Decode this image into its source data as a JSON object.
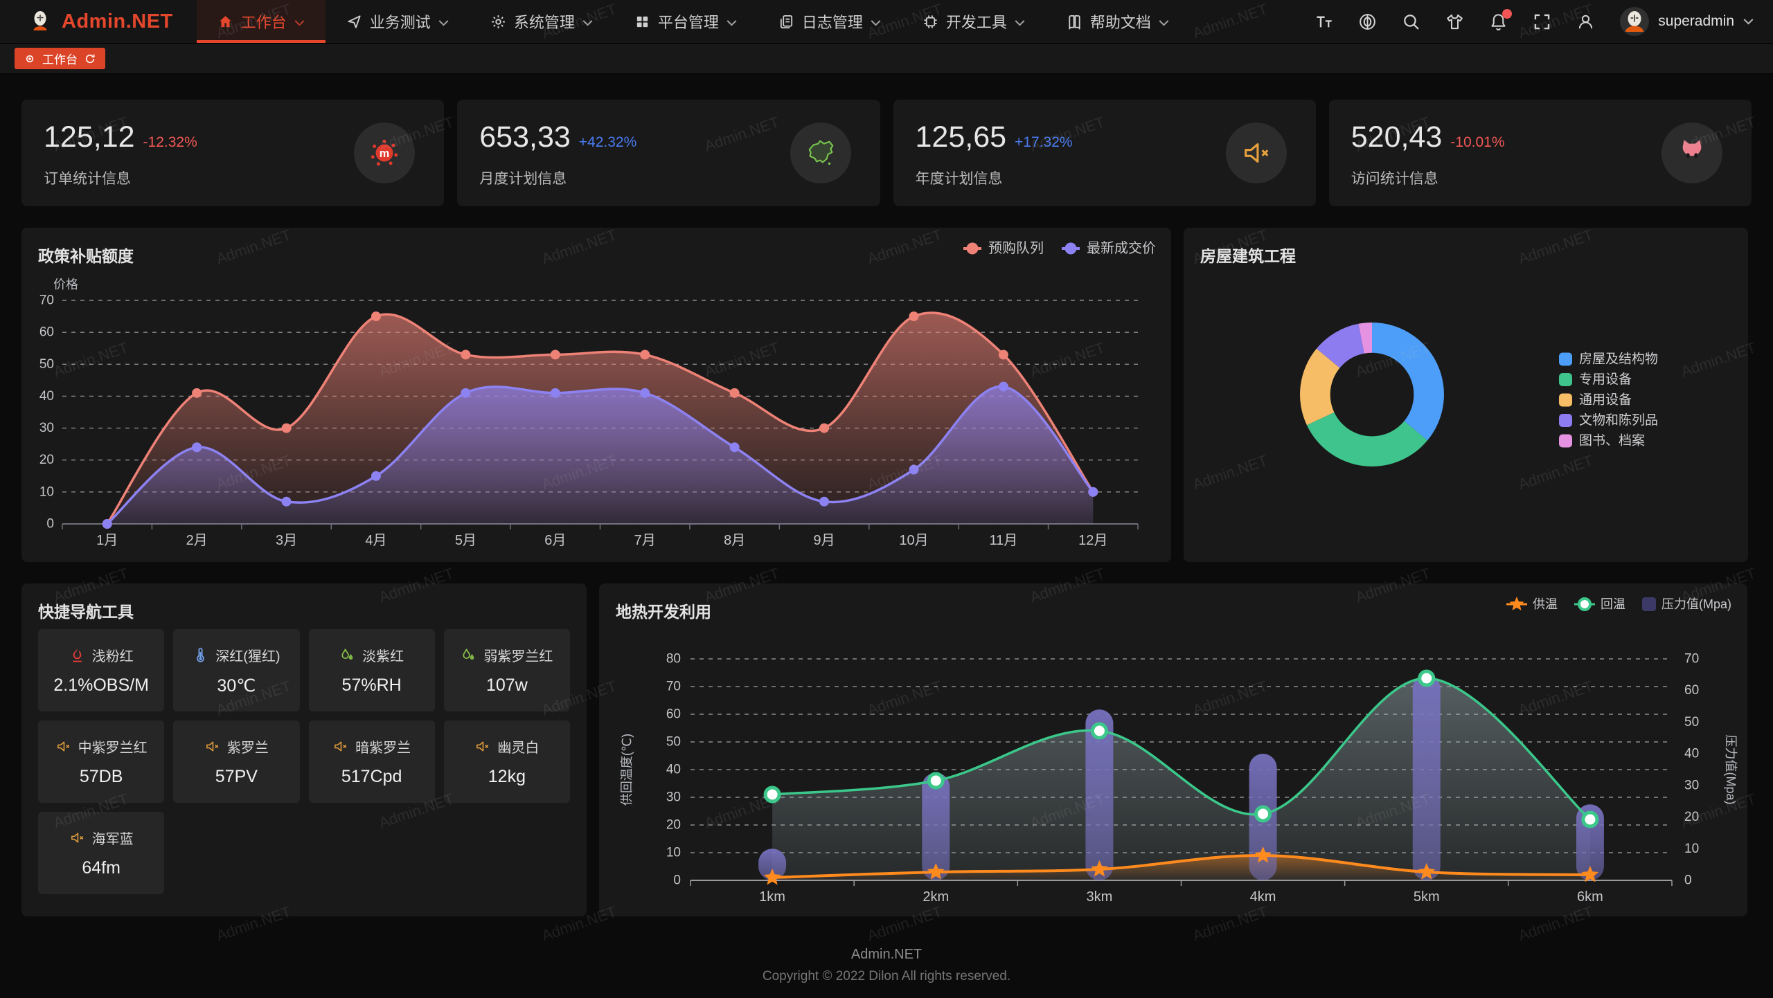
{
  "navbar": {
    "logo_text": "Admin.NET",
    "menu": [
      {
        "id": "workbench",
        "label": "工作台",
        "icon": "home",
        "active": true
      },
      {
        "id": "business-test",
        "label": "业务测试",
        "icon": "send",
        "active": false
      },
      {
        "id": "system-manage",
        "label": "系统管理",
        "icon": "gear",
        "active": false
      },
      {
        "id": "platform-manage",
        "label": "平台管理",
        "icon": "grid",
        "active": false
      },
      {
        "id": "log-manage",
        "label": "日志管理",
        "icon": "document",
        "active": false
      },
      {
        "id": "dev-tools",
        "label": "开发工具",
        "icon": "chip",
        "active": false
      },
      {
        "id": "help-docs",
        "label": "帮助文档",
        "icon": "book",
        "active": false
      }
    ],
    "right_icons": [
      {
        "id": "font-size",
        "icon": "font-size",
        "badge": false
      },
      {
        "id": "language",
        "icon": "language",
        "badge": false
      },
      {
        "id": "search",
        "icon": "search",
        "badge": false
      },
      {
        "id": "theme",
        "icon": "shirt",
        "badge": false
      },
      {
        "id": "notification",
        "icon": "bell",
        "badge": true
      },
      {
        "id": "fullscreen",
        "icon": "fullscreen",
        "badge": false
      },
      {
        "id": "profile",
        "icon": "person",
        "badge": false
      }
    ],
    "username": "superadmin"
  },
  "tabbar": {
    "active_tab": "工作台"
  },
  "stat_cards": [
    {
      "value": "125,12",
      "delta": "-12.32%",
      "direction": "down",
      "label": "订单统计信息",
      "icon": "splat",
      "icon_color": "#e03a2c"
    },
    {
      "value": "653,33",
      "delta": "+42.32%",
      "direction": "up",
      "label": "月度计划信息",
      "icon": "china-map",
      "icon_color": "#7ac74f"
    },
    {
      "value": "125,65",
      "delta": "+17.32%",
      "direction": "up",
      "label": "年度计划信息",
      "icon": "speaker",
      "icon_color": "#e8a23d"
    },
    {
      "value": "520,43",
      "delta": "-10.01%",
      "direction": "down",
      "label": "访问统计信息",
      "icon": "cat",
      "icon_color": "#ee7f8d"
    }
  ],
  "quick_nav": {
    "title": "快捷导航工具",
    "items": [
      {
        "name": "浅粉红",
        "value": "2.1%OBS/M",
        "icon": "heat",
        "color": "#e23d35"
      },
      {
        "name": "深红(猩红)",
        "value": "30℃",
        "icon": "thermometer",
        "color": "#6f9fe8"
      },
      {
        "name": "淡紫红",
        "value": "57%RH",
        "icon": "humidity",
        "color": "#8bc34a"
      },
      {
        "name": "弱紫罗兰红",
        "value": "107w",
        "icon": "humidity",
        "color": "#8bc34a"
      },
      {
        "name": "中紫罗兰红",
        "value": "57DB",
        "icon": "speaker",
        "color": "#e8a23d"
      },
      {
        "name": "紫罗兰",
        "value": "57PV",
        "icon": "speaker",
        "color": "#e8a23d"
      },
      {
        "name": "暗紫罗兰",
        "value": "517Cpd",
        "icon": "speaker",
        "color": "#e8a23d"
      },
      {
        "name": "幽灵白",
        "value": "12kg",
        "icon": "speaker",
        "color": "#e8a23d"
      },
      {
        "name": "海军蓝",
        "value": "64fm",
        "icon": "speaker",
        "color": "#e8a23d"
      }
    ]
  },
  "watermark": "Admin.NET",
  "footer": {
    "app_name": "Admin.NET",
    "copyright": "Copyright © 2022 Dilon All rights reserved."
  },
  "chart_data": [
    {
      "id": "subsidy",
      "type": "line",
      "title": "政策补贴额度",
      "ylabel": "价格",
      "categories": [
        "1月",
        "2月",
        "3月",
        "4月",
        "5月",
        "6月",
        "7月",
        "8月",
        "9月",
        "10月",
        "11月",
        "12月"
      ],
      "ylim": [
        0,
        70
      ],
      "ystep": 10,
      "grid": "dashed",
      "legend_position": "top-right",
      "series": [
        {
          "name": "预购队列",
          "color": "#ee8277",
          "values": [
            0,
            41,
            30,
            65,
            53,
            53,
            53,
            41,
            30,
            65,
            53,
            10
          ]
        },
        {
          "name": "最新成交价",
          "color": "#8d82f2",
          "values": [
            0,
            24,
            7,
            15,
            41,
            41,
            41,
            24,
            7,
            17,
            43,
            10
          ]
        }
      ]
    },
    {
      "id": "building",
      "type": "pie",
      "title": "房屋建筑工程",
      "inner_radius_ratio": 0.58,
      "legend_position": "right",
      "items": [
        {
          "name": "房屋及结构物",
          "value": 36,
          "color": "#4d9ef8"
        },
        {
          "name": "专用设备",
          "value": 32,
          "color": "#3ec48c"
        },
        {
          "name": "通用设备",
          "value": 18,
          "color": "#f6bd66"
        },
        {
          "name": "文物和陈列品",
          "value": 11,
          "color": "#8d7cf0"
        },
        {
          "name": "图书、档案",
          "value": 3,
          "color": "#e592e3"
        }
      ]
    },
    {
      "id": "geothermal",
      "type": "combo",
      "title": "地热开发利用",
      "categories": [
        "1km",
        "2km",
        "3km",
        "4km",
        "5km",
        "6km"
      ],
      "left_axis": {
        "name": "供回温度(℃)",
        "min": 0,
        "max": 80,
        "step": 10
      },
      "right_axis": {
        "name": "压力值(Mpa)",
        "min": 0,
        "max": 70,
        "step": 10
      },
      "legend_position": "top-right",
      "series": [
        {
          "name": "供温",
          "type": "line",
          "marker": "star",
          "axis": "left",
          "color": "#ff8b1f",
          "values": [
            1,
            3,
            4,
            9,
            3,
            2
          ]
        },
        {
          "name": "回温",
          "type": "line",
          "marker": "circle",
          "axis": "left",
          "color": "#3bc88a",
          "values": [
            31,
            36,
            54,
            24,
            73,
            22
          ]
        },
        {
          "name": "压力值(Mpa)",
          "type": "bar",
          "axis": "right",
          "color": "#514d8c",
          "values": [
            10,
            34,
            54,
            40,
            65,
            24
          ]
        }
      ]
    }
  ]
}
